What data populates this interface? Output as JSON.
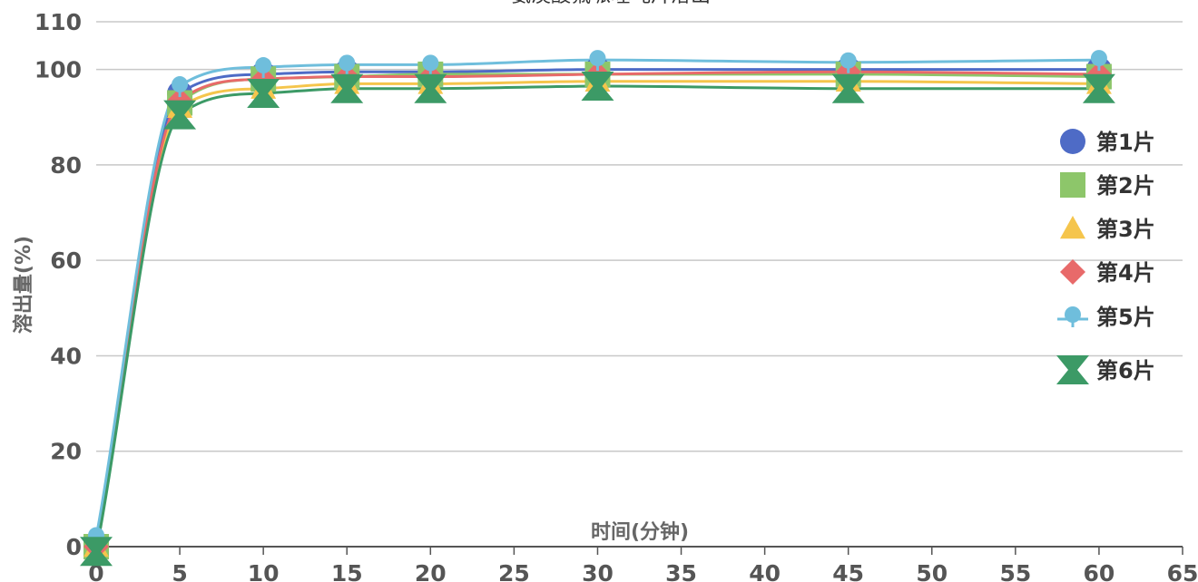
{
  "chart_data": {
    "type": "line",
    "title": "氨溴酸氟哌噻吨片溶出",
    "xlabel": "时间(分钟)",
    "ylabel": "溶出量(%)",
    "xlim": [
      0,
      65
    ],
    "ylim": [
      0,
      110
    ],
    "x_ticks": [
      0,
      5,
      10,
      15,
      20,
      25,
      30,
      35,
      40,
      45,
      50,
      55,
      60,
      65
    ],
    "y_ticks": [
      0,
      20,
      40,
      60,
      80,
      100,
      110
    ],
    "grid": true,
    "smooth": true,
    "legend_position": "right",
    "x": [
      0,
      5,
      10,
      15,
      20,
      30,
      45,
      60
    ],
    "series": [
      {
        "name": "第1片",
        "marker": "circle",
        "color": "#4E6BC6",
        "values": [
          0,
          95,
          99,
          99.5,
          99.5,
          100,
          100,
          100
        ]
      },
      {
        "name": "第2片",
        "marker": "square",
        "color": "#8DC66A",
        "values": [
          0,
          93,
          98,
          98.5,
          99,
          99,
          99,
          98.5
        ]
      },
      {
        "name": "第3片",
        "marker": "triangle",
        "color": "#F5C54C",
        "values": [
          0,
          92,
          96,
          97,
          97,
          97.5,
          97.5,
          97
        ]
      },
      {
        "name": "第4片",
        "marker": "diamond",
        "color": "#E86A6A",
        "values": [
          0,
          93.5,
          98,
          98.5,
          98.5,
          99,
          99.5,
          99
        ]
      },
      {
        "name": "第5片",
        "marker": "pin",
        "color": "#6FBEDC",
        "values": [
          2,
          96.5,
          100.5,
          101,
          101,
          102,
          101.5,
          102
        ]
      },
      {
        "name": "第6片",
        "marker": "bowtie",
        "color": "#3C9A66",
        "values": [
          -1,
          90.5,
          95,
          96,
          96,
          96.5,
          96,
          96
        ]
      }
    ]
  }
}
